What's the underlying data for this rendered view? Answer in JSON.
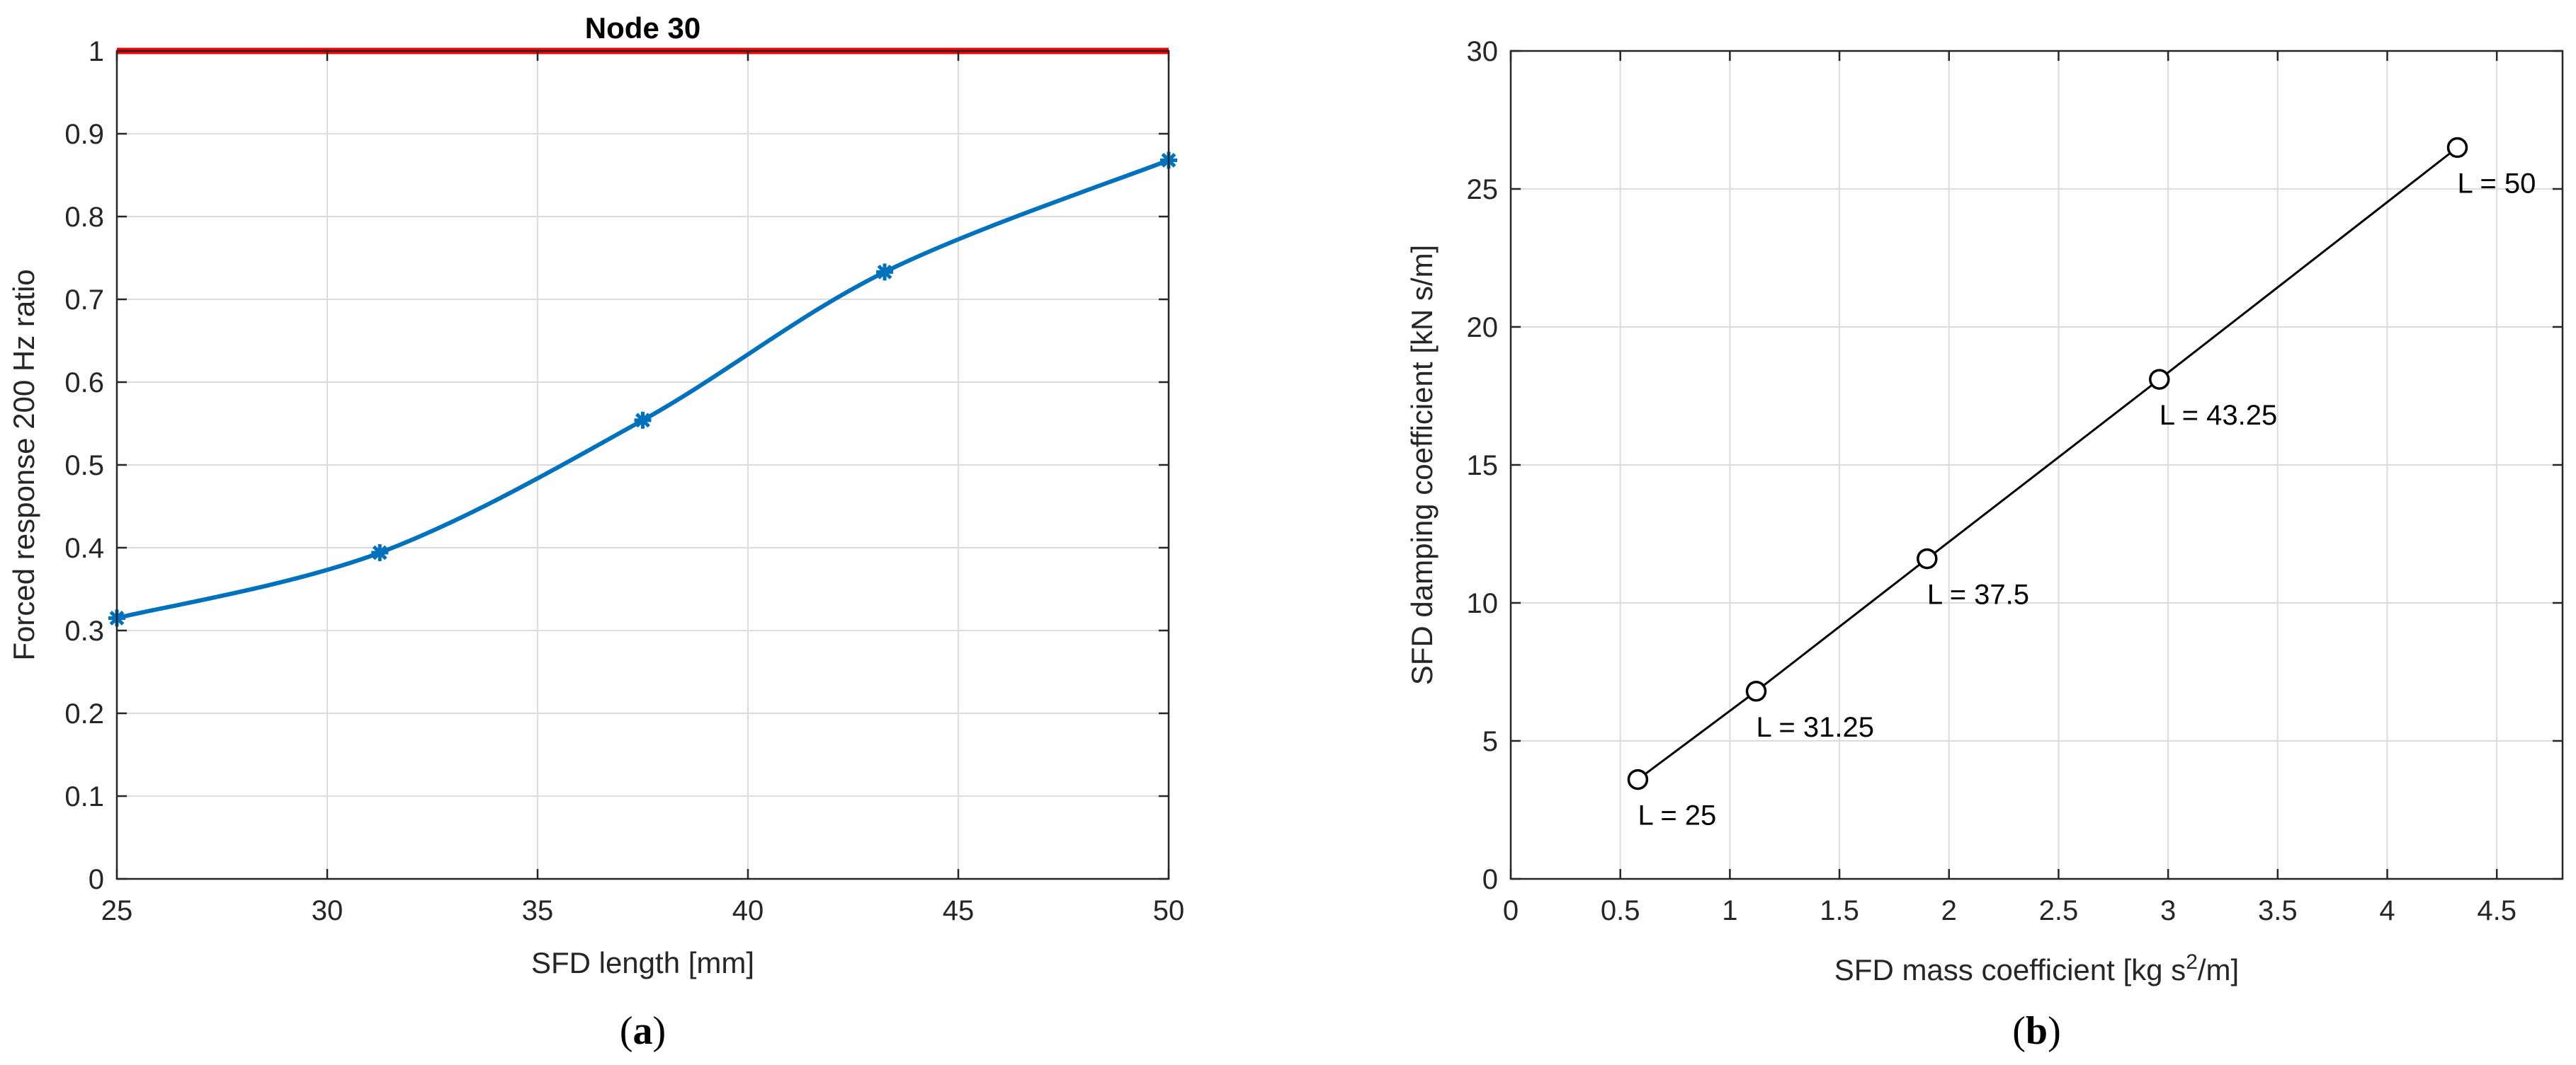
{
  "chart_data": [
    {
      "type": "line",
      "title": "Node 30",
      "xlabel": "SFD length [mm]",
      "ylabel": "Forced response 200 Hz ratio",
      "xlim": [
        25,
        50
      ],
      "ylim": [
        0,
        1
      ],
      "xticks": [
        25,
        30,
        35,
        40,
        45,
        50
      ],
      "yticks": [
        0,
        0.1,
        0.2,
        0.3,
        0.4,
        0.5,
        0.6,
        0.7,
        0.8,
        0.9,
        1
      ],
      "grid": true,
      "series": [
        {
          "color": "#0072BD",
          "marker": "asterisk",
          "smooth": true,
          "x": [
            25,
            31.25,
            37.5,
            43.25,
            50
          ],
          "y": [
            0.315,
            0.394,
            0.554,
            0.733,
            0.868
          ]
        }
      ],
      "reference_line": {
        "y": 1,
        "color": "#FF0000"
      },
      "caption_open": "(",
      "caption_letter": "a",
      "caption_close": ")"
    },
    {
      "type": "line",
      "title": "",
      "xlabel_pre": "SFD mass coefficient [kg s",
      "xlabel_sup": "2",
      "xlabel_post": "/m]",
      "ylabel": "SFD damping coefficient [kN s/m]",
      "xlim": [
        0,
        4.8
      ],
      "ylim": [
        0,
        30
      ],
      "xticks": [
        0,
        0.5,
        1,
        1.5,
        2,
        2.5,
        3,
        3.5,
        4,
        4.5
      ],
      "yticks": [
        0,
        5,
        10,
        15,
        20,
        25,
        30
      ],
      "grid": true,
      "series": [
        {
          "color": "#000000",
          "marker": "circle",
          "x": [
            0.58,
            1.12,
            1.9,
            2.96,
            4.32
          ],
          "y": [
            3.6,
            6.8,
            11.6,
            18.1,
            26.5
          ],
          "labels": [
            "L = 25",
            "L = 31.25",
            "L = 37.5",
            "L = 43.25",
            "L = 50"
          ]
        }
      ],
      "caption_open": "(",
      "caption_letter": "b",
      "caption_close": ")"
    }
  ]
}
